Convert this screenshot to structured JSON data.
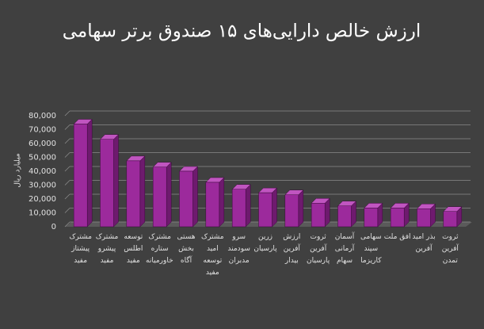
{
  "chart_data": {
    "type": "bar3d",
    "title": "ارزش خالص دارایی‌های ۱۵ صندوق برتر سهامی",
    "y_label": "میلیارد ریال",
    "categories": [
      "مشترک\nپیشتاز\nمفید",
      "مشترک\nپیشرو\nمفید",
      "توسعه\nاطلس\nمفید",
      "مشترک\nستاره\nخاورمیانه",
      "هستی\nبخش\nآگاه",
      "مشترک\nامید\nتوسعه\nمفید",
      "سرو\nسودمند\nمدبران",
      "زرین\nپارسیان",
      "ارزش\nآفرین\nبیدار",
      "ثروت\nآفرین\nپارسیان",
      "آسمان\nآرمانی\nسهام",
      "سهامی\nسپند\nکاریزما",
      "افق ملت",
      "بذر امید\nآفرین",
      "ثروت\nآفرین\nتمدن"
    ],
    "values": [
      74000,
      63000,
      47500,
      43000,
      40000,
      32000,
      27000,
      24500,
      23000,
      17000,
      15000,
      13500,
      13500,
      13000,
      11000
    ],
    "color": "#9c2a9c",
    "ylim": [
      0,
      80000
    ],
    "yticks": [
      0,
      {
        "value": 10000,
        "label": "10,000"
      },
      {
        "value": 20000,
        "label": "20,000"
      },
      {
        "value": 30000,
        "label": "30,000"
      },
      {
        "value": 40000,
        "label": "40,000"
      },
      {
        "value": 50000,
        "label": "50,000"
      },
      {
        "value": 60000,
        "label": "60,000"
      },
      {
        "value": 70000,
        "label": "70,000"
      },
      {
        "value": 80000,
        "label": "80,000"
      }
    ],
    "grid": true
  }
}
